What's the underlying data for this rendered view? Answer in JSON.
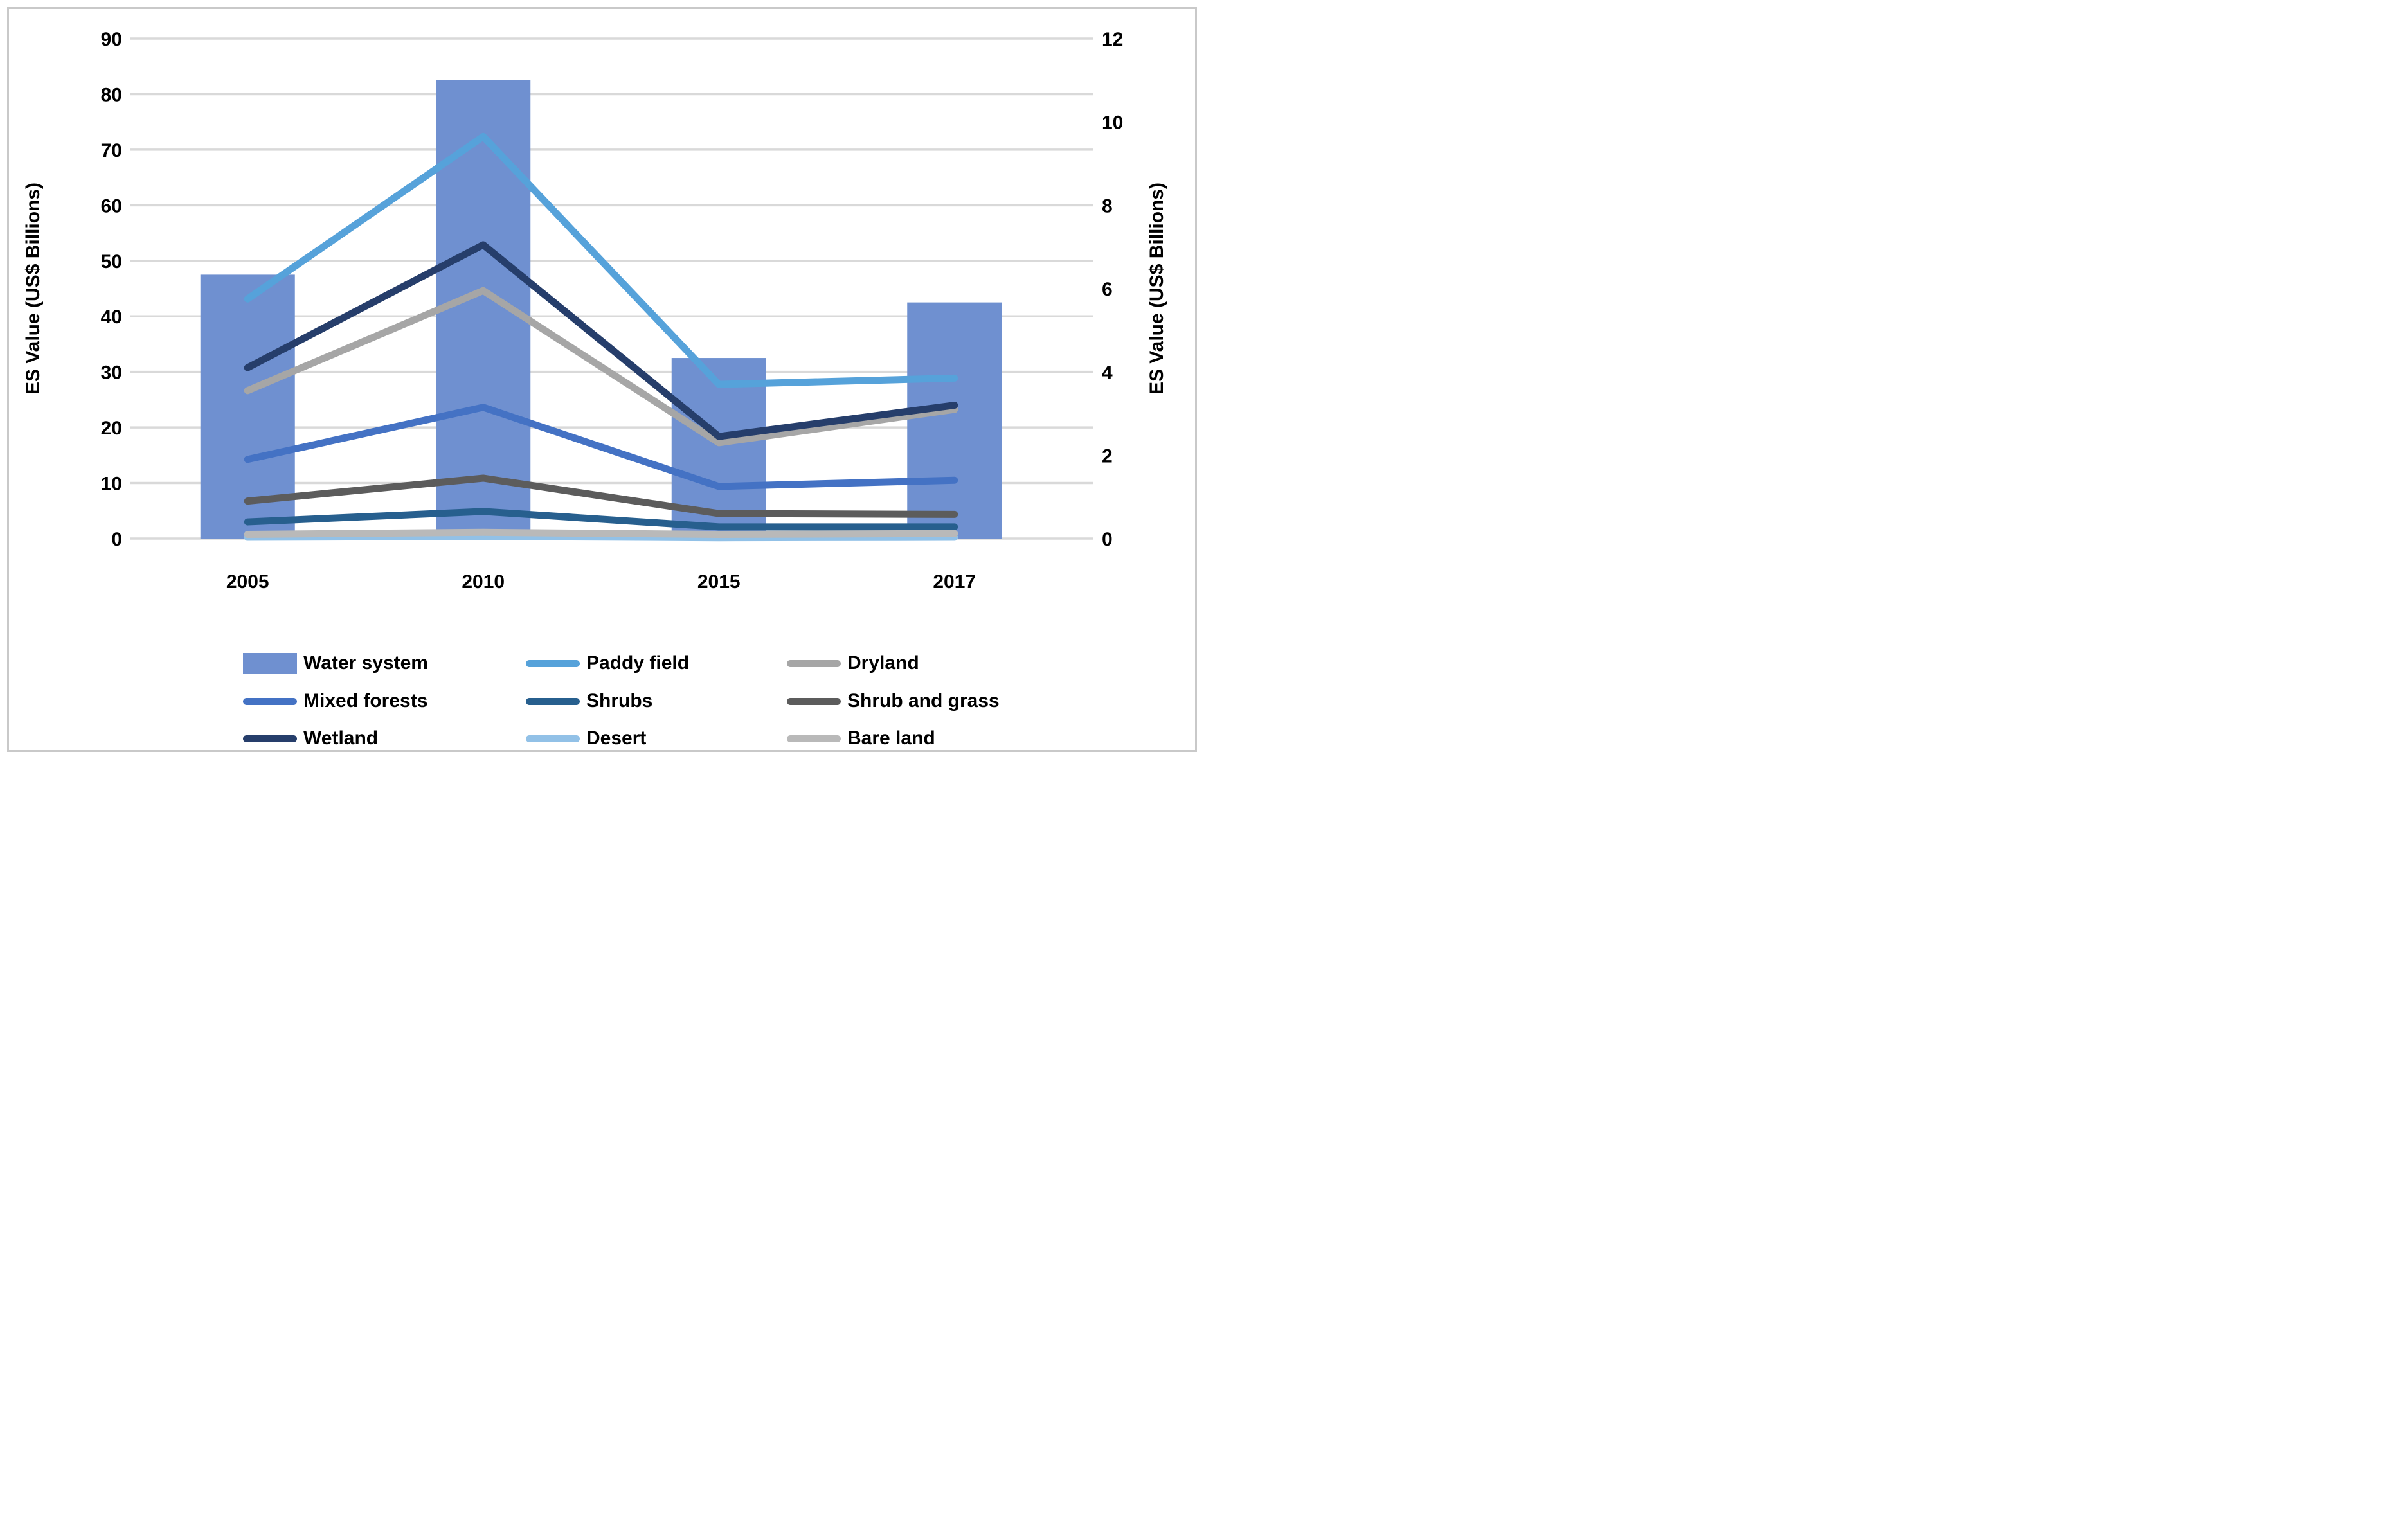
{
  "axes": {
    "left": {
      "title": "ES Value (US$ Billions)",
      "ticks": [
        0,
        10,
        20,
        30,
        40,
        50,
        60,
        70,
        80,
        90
      ],
      "max": 90
    },
    "right": {
      "title": "ES Value (US$ Billions)",
      "ticks": [
        0,
        2,
        4,
        6,
        8,
        10,
        12
      ],
      "max": 12
    },
    "x": {
      "categories": [
        "2005",
        "2010",
        "2015",
        "2017"
      ]
    }
  },
  "colors": {
    "gridline": "#d9d9d9",
    "figure_border": "#c9c9c9"
  },
  "chart_data": {
    "type": "bar+line",
    "categories": [
      "2005",
      "2010",
      "2015",
      "2017"
    ],
    "left_ylabel": "ES Value (US$ Billions)",
    "right_ylabel": "ES Value (US$ Billions)",
    "left_ylim": [
      0,
      90
    ],
    "right_ylim": [
      0,
      12
    ],
    "grid": true,
    "legend_position": "bottom",
    "bar_series": [
      {
        "name": "Water system",
        "axis": "left",
        "color": "#6f90d0",
        "values": [
          47.5,
          82.5,
          32.5,
          42.5
        ]
      }
    ],
    "line_series": [
      {
        "name": "Paddy field",
        "axis": "right",
        "color": "#56a2da",
        "values": [
          5.75,
          9.65,
          3.7,
          3.85
        ]
      },
      {
        "name": "Dryland",
        "axis": "right",
        "color": "#a6a6a6",
        "values": [
          3.55,
          5.95,
          2.3,
          3.1
        ]
      },
      {
        "name": "Mixed forests",
        "axis": "right",
        "color": "#4472c4",
        "values": [
          1.9,
          3.15,
          1.25,
          1.4
        ]
      },
      {
        "name": "Shrubs",
        "axis": "right",
        "color": "#275f8e",
        "values": [
          0.4,
          0.65,
          0.28,
          0.28
        ]
      },
      {
        "name": "Shrub and grass",
        "axis": "right",
        "color": "#5c5c5c",
        "values": [
          0.9,
          1.45,
          0.6,
          0.58
        ]
      },
      {
        "name": "Wetland",
        "axis": "right",
        "color": "#263e6b",
        "values": [
          4.1,
          7.05,
          2.45,
          3.2
        ]
      },
      {
        "name": "Desert",
        "axis": "right",
        "color": "#92c1e7",
        "values": [
          0.03,
          0.05,
          0.02,
          0.03
        ]
      },
      {
        "name": "Bare land",
        "axis": "right",
        "color": "#b9b9b9",
        "values": [
          0.1,
          0.15,
          0.1,
          0.12
        ]
      }
    ]
  },
  "legend": {
    "entries": [
      {
        "label": "Water system",
        "type": "bar",
        "color": "#6f90d0"
      },
      {
        "label": "Paddy field",
        "type": "line",
        "color": "#56a2da"
      },
      {
        "label": "Dryland",
        "type": "line",
        "color": "#a6a6a6"
      },
      {
        "label": "Mixed forests",
        "type": "line",
        "color": "#4472c4"
      },
      {
        "label": "Shrubs",
        "type": "line",
        "color": "#275f8e"
      },
      {
        "label": "Shrub and grass",
        "type": "line",
        "color": "#5c5c5c"
      },
      {
        "label": "Wetland",
        "type": "line",
        "color": "#263e6b"
      },
      {
        "label": "Desert",
        "type": "line",
        "color": "#92c1e7"
      },
      {
        "label": "Bare land",
        "type": "line",
        "color": "#b9b9b9"
      }
    ]
  }
}
